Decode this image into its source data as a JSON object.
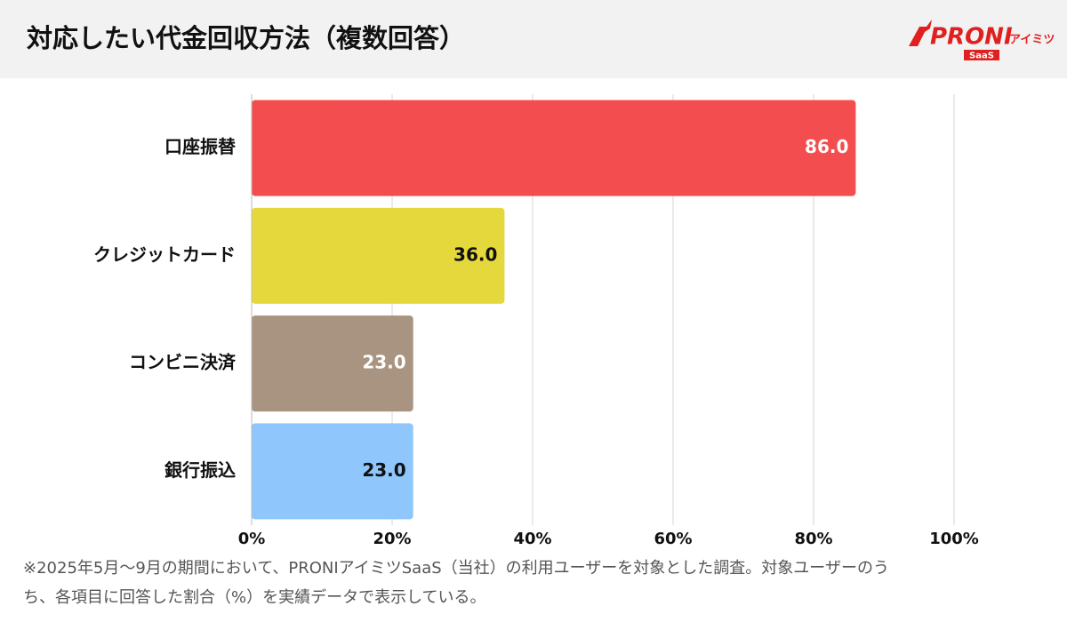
{
  "chart_data": {
    "type": "bar",
    "orientation": "horizontal",
    "title": "対応したい代金回収方法（複数回答）",
    "categories": [
      "口座振替",
      "クレジットカード",
      "コンビニ決済",
      "銀行振込"
    ],
    "values": [
      86,
      36,
      23,
      23
    ],
    "value_labels": [
      "86.0",
      "36.0",
      "23.0",
      "23.0"
    ],
    "colors": [
      "#f44d4f",
      "#e5d83c",
      "#a89480",
      "#8fc6fb"
    ],
    "xlim": [
      0,
      100
    ],
    "xticks": [
      {
        "value": 0,
        "label": "0%"
      },
      {
        "value": 20,
        "label": "20%"
      },
      {
        "value": 40,
        "label": "40%"
      },
      {
        "value": 60,
        "label": "60%"
      },
      {
        "value": 80,
        "label": "80%"
      },
      {
        "value": 100,
        "label": "100%"
      }
    ],
    "grid": true
  },
  "logo": {
    "brand": "PRONI",
    "sub": "アイミツ",
    "tag": "SaaS"
  },
  "footnote": [
    "※2025年5月〜9月の期間において、PRONIアイミツSaaS（当社）の利用ユーザーを対象とした調査。対象ユーザーのう",
    "ち、各項目に回答した割合（%）を実績データで表示している。"
  ]
}
